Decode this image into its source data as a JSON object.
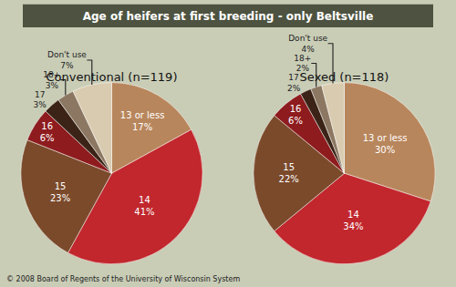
{
  "title": "Age of heifers at first breeding - only Beltsville",
  "note": "© 2008 Board of Regents of the University of Wisconsin System",
  "chart_data": [
    {
      "type": "pie",
      "title": "Conventional (n=119)",
      "categories": [
        "13 or less",
        "14",
        "15",
        "16",
        "17",
        "18+",
        "Don't use"
      ],
      "values": [
        17,
        41,
        23,
        6,
        3,
        3,
        7
      ],
      "value_labels": [
        "17%",
        "41%",
        "23%",
        "6%",
        "3%",
        "3%",
        "7%"
      ],
      "data_labels": true,
      "colors": [
        "#b8865c",
        "#c1272d",
        "#7b4a2b",
        "#8e1b1e",
        "#3b2417",
        "#8c7862",
        "#d9cbb0"
      ]
    },
    {
      "type": "pie",
      "title": "Sexed (n=118)",
      "categories": [
        "13 or less",
        "14",
        "15",
        "16",
        "17",
        "18+",
        "Don't use"
      ],
      "values": [
        30,
        34,
        22,
        6,
        2,
        2,
        4
      ],
      "value_labels": [
        "30%",
        "34%",
        "22%",
        "6%",
        "2%",
        "2%",
        "4%"
      ],
      "data_labels": true,
      "colors": [
        "#b8865c",
        "#c1272d",
        "#7b4a2b",
        "#8e1b1e",
        "#3b2417",
        "#8c7862",
        "#d9cbb0"
      ]
    }
  ]
}
